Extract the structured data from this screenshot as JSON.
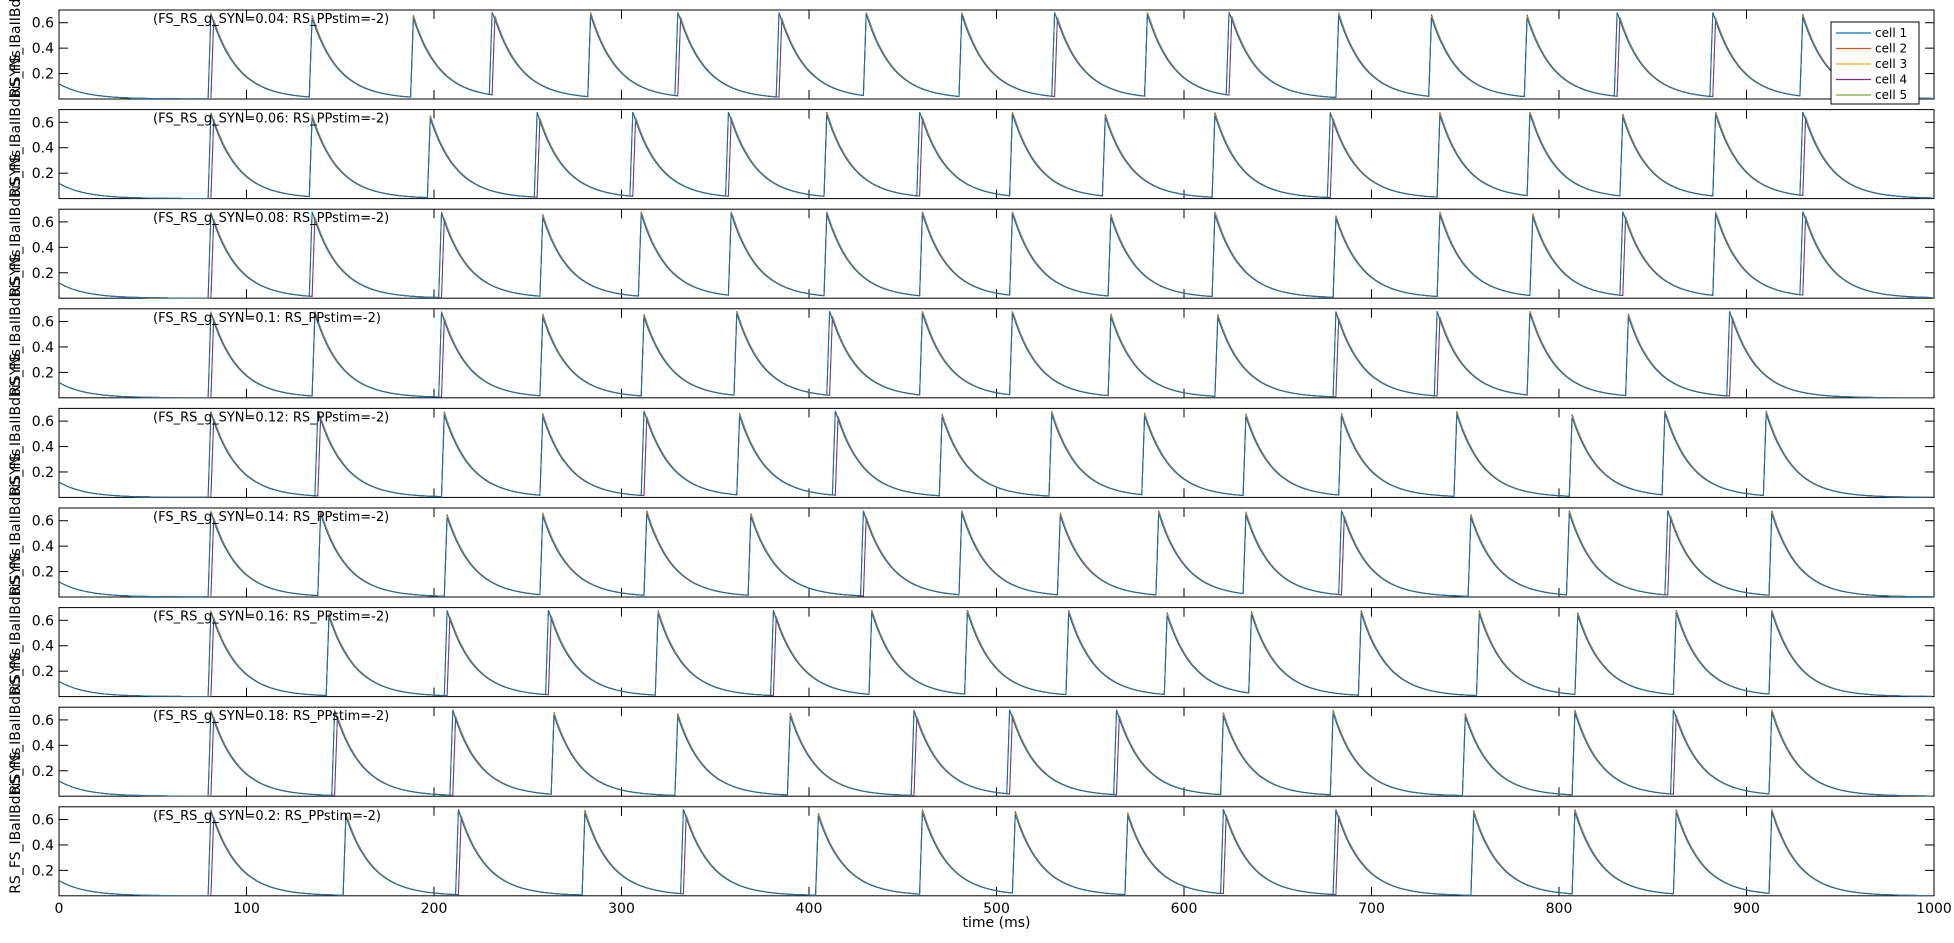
{
  "chart_data": {
    "type": "line",
    "xlabel": "time (ms)",
    "xlim": [
      0,
      1000
    ],
    "xticks": [
      0,
      100,
      200,
      300,
      400,
      500,
      600,
      700,
      800,
      900,
      1000
    ],
    "ylim": [
      0,
      0.7
    ],
    "yticks": [
      0.2,
      0.4,
      0.6
    ],
    "grid": false,
    "legend": {
      "placement": "top-right",
      "entries": [
        {
          "name": "cell 1",
          "color": "#0072bd"
        },
        {
          "name": "cell 2",
          "color": "#d95319"
        },
        {
          "name": "cell 3",
          "color": "#edb120"
        },
        {
          "name": "cell 4",
          "color": "#7e2f8e"
        },
        {
          "name": "cell 5",
          "color": "#77ac30"
        }
      ]
    },
    "decay_tau_ms": 14,
    "panels": [
      {
        "title": "(FS_RS_g_SYN=0.04: RS_PPstim=-2)",
        "ylabel": "RS_FS_IBaIIBdbiSYNs",
        "spikes": [
          81,
          134,
          188,
          231,
          283,
          330,
          384,
          430,
          481,
          531,
          580,
          624,
          682,
          731,
          782,
          831,
          882,
          929
        ]
      },
      {
        "title": "(FS_RS_g_SYN=0.06: RS_PPstim=-2)",
        "ylabel": "RS_FS_IBaIIBdbiSYNs",
        "spikes": [
          81,
          134,
          197,
          255,
          306,
          357,
          409,
          459,
          508,
          557,
          616,
          678,
          736,
          784,
          833,
          883,
          930
        ]
      },
      {
        "title": "(FS_RS_g_SYN=0.08: RS_PPstim=-2)",
        "ylabel": "RS_FS_IBaIIBdbiSYNs",
        "spikes": [
          81,
          135,
          204,
          257,
          310,
          358,
          409,
          460,
          508,
          560,
          616,
          680,
          736,
          785,
          834,
          883,
          930
        ]
      },
      {
        "title": "(FS_RS_g_SYN=0.1: RS_PPstim=-2)",
        "ylabel": "RS_FS_IBaIIBdbiSYNs",
        "spikes": [
          81,
          136,
          204,
          257,
          311,
          361,
          411,
          460,
          508,
          560,
          617,
          681,
          735,
          784,
          836,
          891
        ]
      },
      {
        "title": "(FS_RS_g_SYN=0.12: RS_PPstim=-2)",
        "ylabel": "RS_FS_IBaIIBdbiSYNs",
        "spikes": [
          81,
          138,
          205,
          257,
          312,
          362,
          414,
          470,
          529,
          578,
          632,
          683,
          745,
          806,
          856,
          910
        ]
      },
      {
        "title": "(FS_RS_g_SYN=0.14: RS_PPstim=-2)",
        "ylabel": "RS_FS_IBaIIBdbiSYNs",
        "spikes": [
          81,
          139,
          206,
          257,
          313,
          368,
          429,
          481,
          533,
          586,
          632,
          684,
          752,
          805,
          858,
          913
        ]
      },
      {
        "title": "(FS_RS_g_SYN=0.16: RS_PPstim=-2)",
        "ylabel": "RS_FS_IBaIIBdbiSYNs",
        "spikes": [
          81,
          143,
          207,
          261,
          319,
          381,
          433,
          484,
          538,
          590,
          635,
          694,
          757,
          809,
          862,
          913
        ]
      },
      {
        "title": "(FS_RS_g_SYN=0.18: RS_PPstim=-2)",
        "ylabel": "RS_FS_IBaIIBdbiSYNs",
        "spikes": [
          81,
          147,
          210,
          263,
          329,
          389,
          456,
          507,
          564,
          620,
          679,
          749,
          808,
          861,
          913
        ]
      },
      {
        "title": "(FS_RS_g_SYN=0.2: RS_PPstim=-2)",
        "ylabel": "RS_FS_IBaIIBdbiSYNs",
        "spikes": [
          81,
          152,
          213,
          280,
          333,
          404,
          460,
          509,
          569,
          621,
          681,
          754,
          808,
          862,
          913
        ]
      }
    ]
  }
}
